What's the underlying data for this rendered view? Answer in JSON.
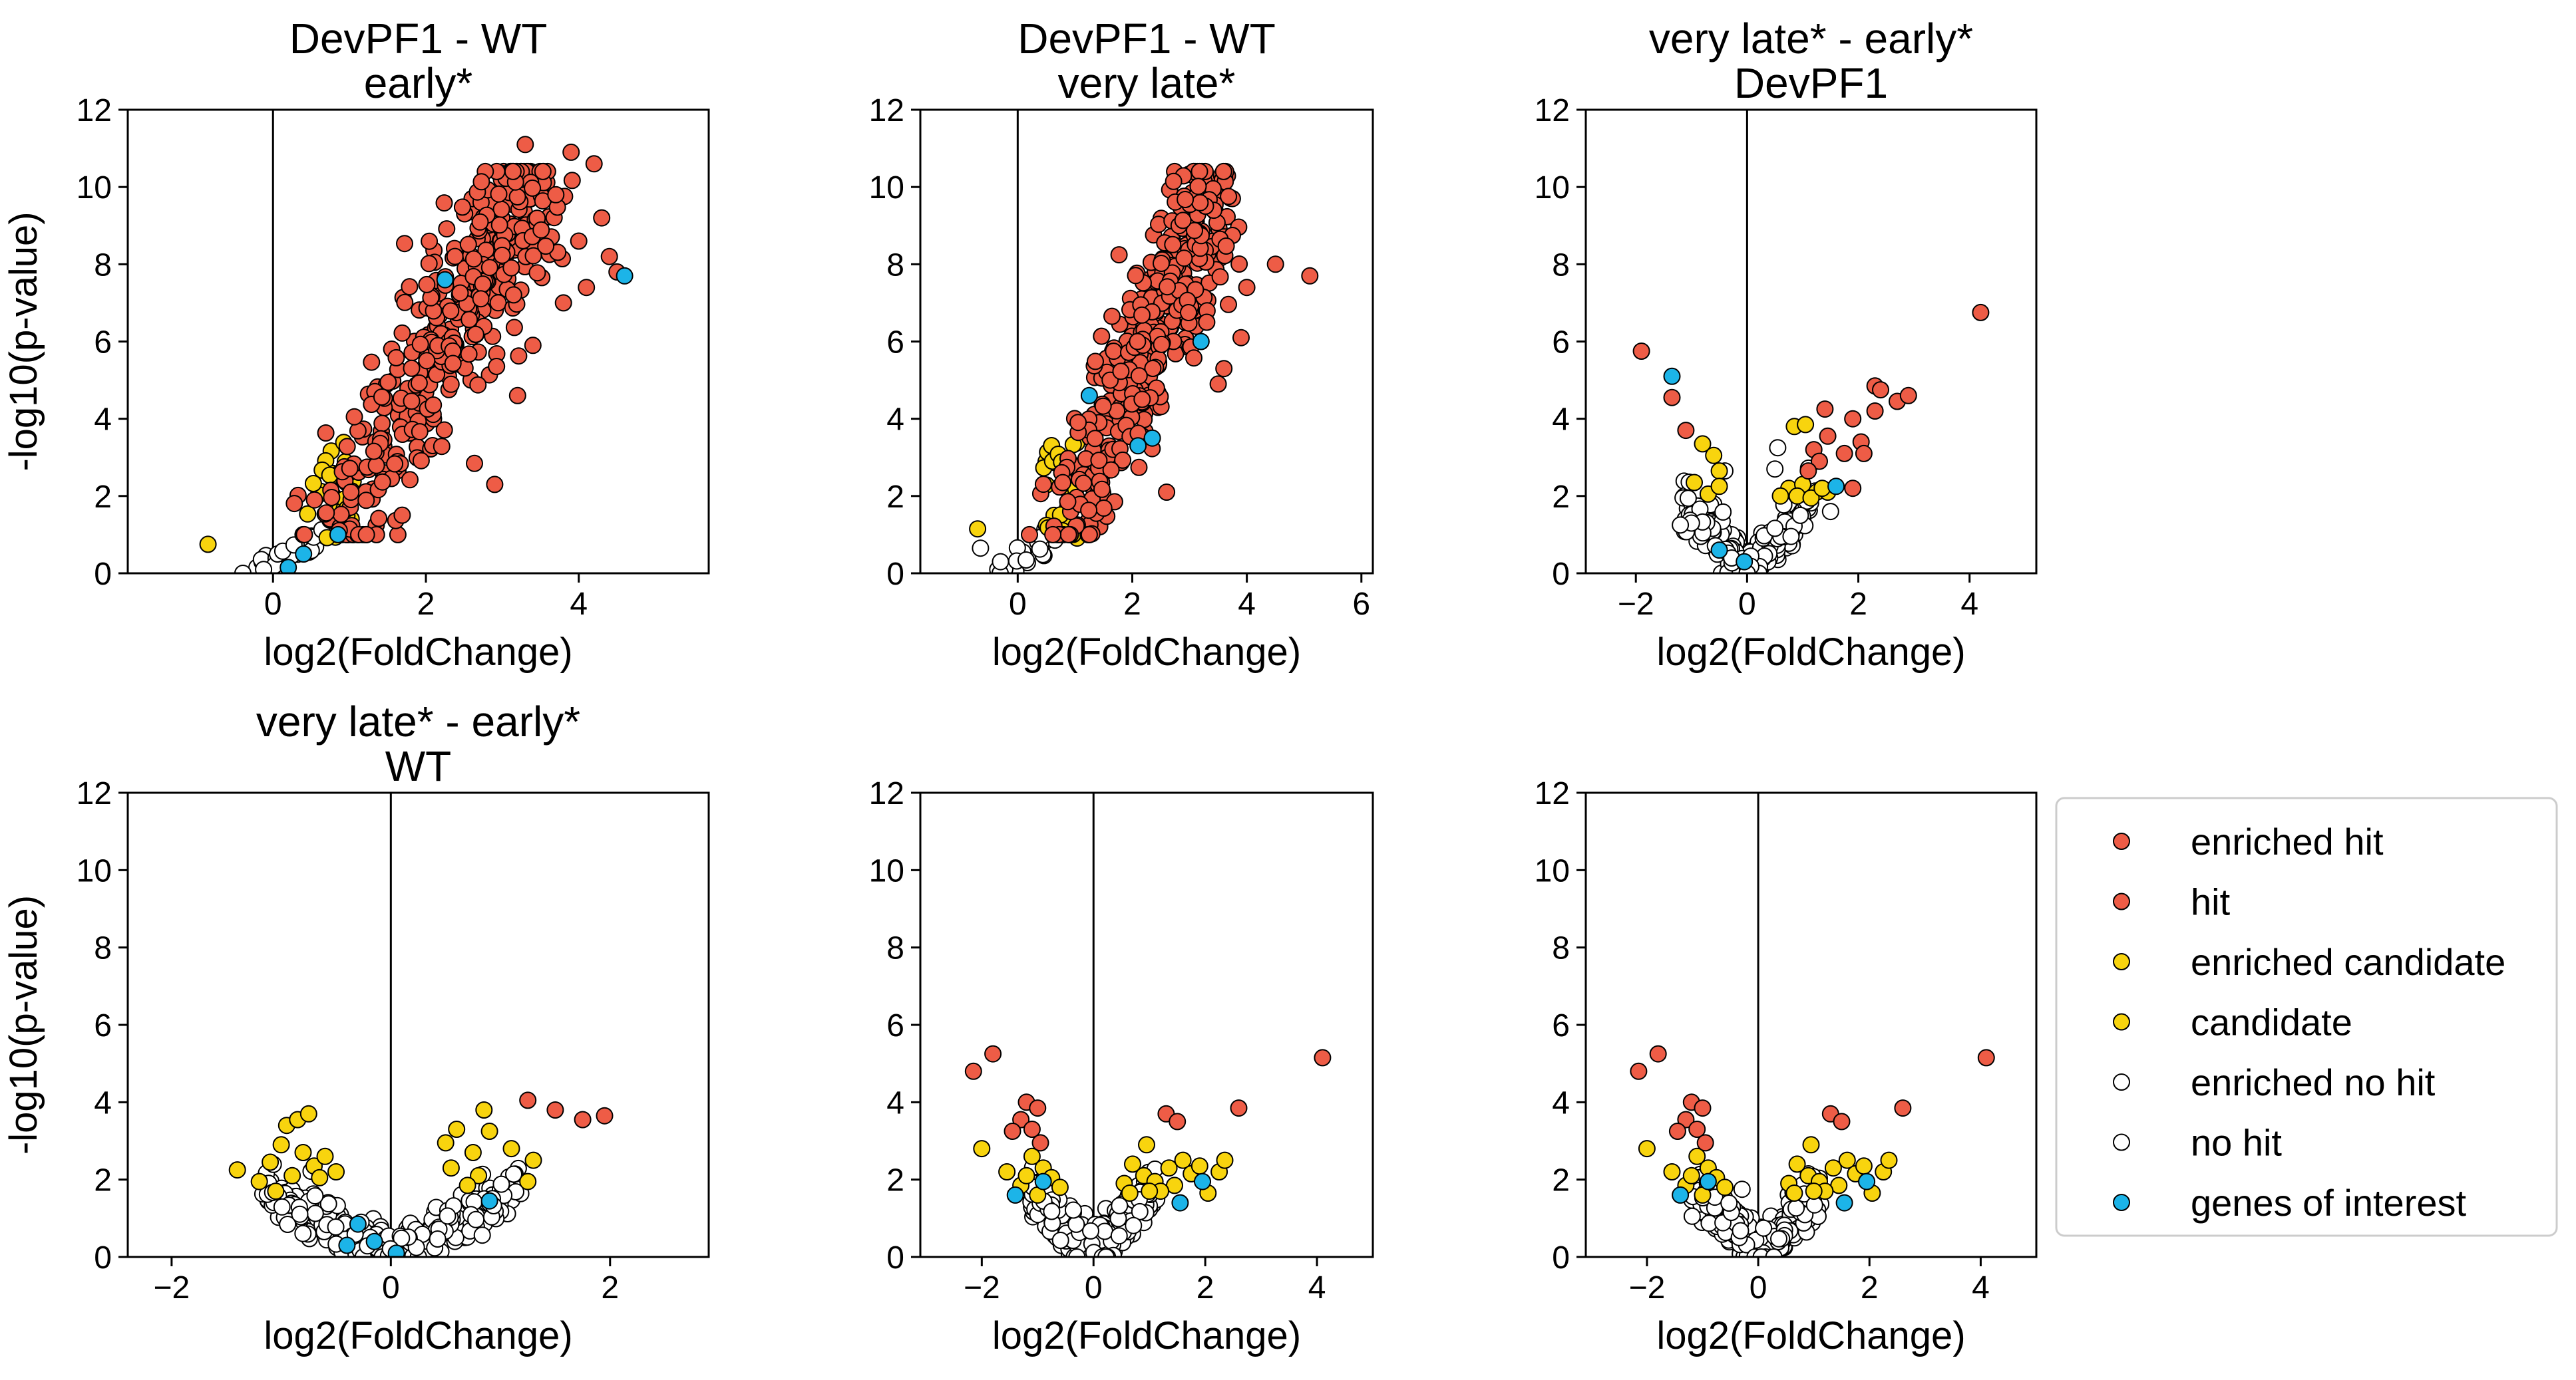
{
  "colors": {
    "hit": "#ee5c46",
    "candidate": "#f8d40e",
    "no_hit": "#ffffff",
    "interest": "#1cb4e8",
    "edge": "#000000"
  },
  "legend": [
    {
      "label": "enriched hit",
      "color": "#ee5c46"
    },
    {
      "label": "hit",
      "color": "#ee5c46"
    },
    {
      "label": "enriched candidate",
      "color": "#f8d40e"
    },
    {
      "label": "candidate",
      "color": "#f8d40e"
    },
    {
      "label": "enriched no hit",
      "color": "#ffffff"
    },
    {
      "label": "no hit",
      "color": "#ffffff"
    },
    {
      "label": "genes of interest",
      "color": "#1cb4e8"
    }
  ],
  "chart_data": [
    {
      "type": "scatter",
      "title": [
        "DevPF1 - WT",
        "early*"
      ],
      "xlabel": "log2(FoldChange)",
      "ylabel": "-log10(p-value)",
      "xlim": [
        -1.9,
        5.7
      ],
      "ylim": [
        0,
        12
      ],
      "xticks": [
        0,
        2,
        4
      ],
      "yticks": [
        0,
        2,
        4,
        6,
        8,
        10,
        12
      ],
      "vline": 0,
      "cloud": {
        "kind": "fan",
        "hit_n": 420,
        "cand_n": 30,
        "nohit_n": 25
      },
      "points": {
        "hit": [
          [
            3.9,
            10.9
          ],
          [
            3.3,
            11.1
          ],
          [
            4.2,
            10.6
          ],
          [
            3.7,
            9.8
          ],
          [
            4.3,
            9.2
          ],
          [
            4.0,
            8.6
          ],
          [
            4.4,
            8.2
          ],
          [
            3.8,
            7.0
          ],
          [
            3.4,
            5.9
          ],
          [
            3.2,
            4.6
          ],
          [
            2.9,
            2.3
          ],
          [
            4.5,
            7.8
          ],
          [
            4.1,
            7.4
          ]
        ],
        "candidate": [
          [
            -0.85,
            0.75
          ]
        ],
        "nohit": [],
        "interest": [
          [
            4.6,
            7.7
          ],
          [
            2.25,
            7.6
          ],
          [
            0.85,
            1.0
          ],
          [
            0.2,
            0.15
          ],
          [
            0.4,
            0.5
          ]
        ]
      }
    },
    {
      "type": "scatter",
      "title": [
        "DevPF1 - WT",
        "very late*"
      ],
      "xlabel": "log2(FoldChange)",
      "ylabel": "",
      "xlim": [
        -1.7,
        6.2
      ],
      "ylim": [
        0,
        12
      ],
      "xticks": [
        0,
        2,
        4,
        6
      ],
      "yticks": [
        0,
        2,
        4,
        6,
        8,
        10,
        12
      ],
      "vline": 0,
      "cloud": {
        "kind": "fan",
        "hit_n": 420,
        "cand_n": 30,
        "nohit_n": 25
      },
      "points": {
        "hit": [
          [
            5.1,
            7.7
          ],
          [
            4.5,
            8.0
          ],
          [
            4.0,
            7.4
          ],
          [
            3.9,
            6.1
          ],
          [
            3.5,
            4.9
          ],
          [
            2.6,
            2.1
          ],
          [
            3.6,
            5.3
          ],
          [
            3.3,
            6.5
          ]
        ],
        "candidate": [
          [
            -0.7,
            1.15
          ]
        ],
        "nohit": [
          [
            -0.65,
            0.65
          ],
          [
            -0.3,
            0.3
          ]
        ],
        "interest": [
          [
            3.2,
            6.0
          ],
          [
            2.35,
            3.5
          ],
          [
            1.25,
            4.6
          ],
          [
            2.1,
            3.3
          ]
        ]
      }
    },
    {
      "type": "scatter",
      "title": [
        "very late* - early*",
        "DevPF1"
      ],
      "xlabel": "log2(FoldChange)",
      "ylabel": "",
      "xlim": [
        -2.9,
        5.2
      ],
      "ylim": [
        0,
        12
      ],
      "xticks": [
        -2,
        0,
        2,
        4
      ],
      "yticks": [
        0,
        2,
        4,
        6,
        8,
        10,
        12
      ],
      "vline": 0,
      "cloud": {
        "kind": "volcano",
        "nohit_n": 260
      },
      "points": {
        "hit": [
          [
            4.2,
            6.75
          ],
          [
            -1.9,
            5.75
          ],
          [
            -1.35,
            4.55
          ],
          [
            -1.1,
            3.7
          ],
          [
            1.9,
            4.0
          ],
          [
            2.3,
            4.85
          ],
          [
            2.4,
            4.75
          ],
          [
            2.7,
            4.45
          ],
          [
            2.9,
            4.6
          ],
          [
            1.4,
            4.25
          ],
          [
            1.45,
            3.55
          ],
          [
            1.2,
            3.2
          ],
          [
            1.75,
            3.1
          ],
          [
            1.3,
            2.9
          ],
          [
            2.05,
            3.4
          ],
          [
            2.3,
            4.2
          ],
          [
            1.1,
            2.65
          ],
          [
            1.9,
            2.2
          ],
          [
            2.1,
            3.1
          ]
        ],
        "candidate": [
          [
            -0.8,
            3.35
          ],
          [
            -0.6,
            3.05
          ],
          [
            -0.5,
            2.65
          ],
          [
            -0.95,
            2.35
          ],
          [
            -0.7,
            2.05
          ],
          [
            -0.5,
            2.25
          ],
          [
            0.85,
            3.8
          ],
          [
            1.05,
            3.85
          ],
          [
            0.75,
            2.2
          ],
          [
            1.0,
            2.3
          ],
          [
            1.25,
            2.1
          ],
          [
            1.45,
            2.1
          ],
          [
            0.9,
            2.0
          ],
          [
            0.6,
            2.0
          ],
          [
            1.15,
            1.95
          ],
          [
            1.35,
            2.2
          ]
        ],
        "nohit": [
          [
            0.55,
            3.25
          ],
          [
            0.5,
            2.7
          ],
          [
            -0.4,
            2.65
          ],
          [
            1.5,
            1.6
          ],
          [
            -1.0,
            1.3
          ],
          [
            -1.2,
            1.25
          ]
        ],
        "interest": [
          [
            -1.35,
            5.1
          ],
          [
            1.6,
            2.25
          ],
          [
            -0.5,
            0.6
          ],
          [
            -0.05,
            0.3
          ]
        ]
      }
    },
    {
      "type": "scatter",
      "title": [
        "very late* - early*",
        "WT"
      ],
      "xlabel": "log2(FoldChange)",
      "ylabel": "-log10(p-value)",
      "xlim": [
        -2.4,
        2.9
      ],
      "ylim": [
        0,
        12
      ],
      "xticks": [
        -2,
        0,
        2
      ],
      "yticks": [
        0,
        2,
        4,
        6,
        8,
        10,
        12
      ],
      "vline": 0,
      "cloud": {
        "kind": "volcano",
        "nohit_n": 380
      },
      "points": {
        "hit": [
          [
            1.25,
            4.05
          ],
          [
            1.5,
            3.8
          ],
          [
            1.75,
            3.55
          ],
          [
            1.95,
            3.65
          ]
        ],
        "candidate": [
          [
            -1.4,
            2.25
          ],
          [
            -1.2,
            1.95
          ],
          [
            -1.1,
            2.45
          ],
          [
            -1.0,
            2.9
          ],
          [
            -0.95,
            3.4
          ],
          [
            -0.85,
            3.55
          ],
          [
            -0.75,
            3.7
          ],
          [
            -0.8,
            2.7
          ],
          [
            -0.7,
            2.35
          ],
          [
            -0.9,
            2.1
          ],
          [
            -1.05,
            1.7
          ],
          [
            -0.65,
            2.05
          ],
          [
            -0.6,
            2.6
          ],
          [
            0.85,
            3.8
          ],
          [
            0.6,
            3.3
          ],
          [
            0.9,
            3.25
          ],
          [
            0.5,
            2.95
          ],
          [
            0.75,
            2.7
          ],
          [
            1.1,
            2.8
          ],
          [
            1.3,
            2.5
          ],
          [
            0.55,
            2.3
          ],
          [
            0.8,
            2.1
          ],
          [
            1.25,
            1.95
          ],
          [
            0.7,
            1.85
          ],
          [
            -0.5,
            2.2
          ]
        ],
        "nohit": [],
        "interest": [
          [
            -0.3,
            0.85
          ],
          [
            0.05,
            0.1
          ],
          [
            -0.15,
            0.4
          ],
          [
            -0.4,
            0.3
          ],
          [
            0.9,
            1.45
          ]
        ]
      }
    },
    {
      "type": "scatter",
      "title": [
        "",
        ""
      ],
      "xlabel": "log2(FoldChange)",
      "ylabel": "",
      "xlim": [
        -3.1,
        5.0
      ],
      "ylim": [
        0,
        12
      ],
      "xticks": [
        -2,
        0,
        2,
        4
      ],
      "yticks": [
        0,
        2,
        4,
        6,
        8,
        10,
        12
      ],
      "vline": 0,
      "cloud": {
        "kind": "volcano",
        "nohit_n": 380
      },
      "points": {
        "hit": [
          [
            -2.15,
            4.8
          ],
          [
            -1.8,
            5.25
          ],
          [
            -1.3,
            3.55
          ],
          [
            -1.2,
            4.0
          ],
          [
            -1.1,
            3.3
          ],
          [
            -1.0,
            3.85
          ],
          [
            -1.45,
            3.25
          ],
          [
            -0.95,
            2.95
          ],
          [
            1.3,
            3.7
          ],
          [
            1.5,
            3.5
          ],
          [
            2.6,
            3.85
          ],
          [
            4.1,
            5.15
          ]
        ],
        "candidate": [
          [
            -2.0,
            2.8
          ],
          [
            -1.55,
            2.2
          ],
          [
            -1.3,
            1.85
          ],
          [
            -1.1,
            2.6
          ],
          [
            -0.9,
            2.3
          ],
          [
            -0.75,
            2.05
          ],
          [
            -0.6,
            1.8
          ],
          [
            -1.2,
            2.1
          ],
          [
            -1.0,
            1.6
          ],
          [
            0.55,
            1.9
          ],
          [
            0.7,
            2.4
          ],
          [
            0.9,
            2.1
          ],
          [
            0.95,
            2.9
          ],
          [
            1.1,
            1.95
          ],
          [
            1.35,
            2.3
          ],
          [
            1.45,
            1.85
          ],
          [
            1.6,
            2.5
          ],
          [
            1.75,
            2.15
          ],
          [
            1.9,
            2.35
          ],
          [
            2.05,
            1.65
          ],
          [
            2.25,
            2.2
          ],
          [
            2.35,
            2.5
          ],
          [
            1.2,
            1.7
          ],
          [
            0.65,
            1.65
          ],
          [
            1.0,
            1.7
          ]
        ],
        "nohit": [],
        "interest": [
          [
            -1.4,
            1.6
          ],
          [
            1.55,
            1.4
          ],
          [
            1.95,
            1.95
          ],
          [
            -0.9,
            1.95
          ]
        ]
      }
    },
    {
      "type": "scatter",
      "title": [
        "",
        ""
      ],
      "xlabel": "log2(FoldChange)",
      "ylabel": "",
      "xlim": [
        -3.1,
        5.0
      ],
      "ylim": [
        0,
        12
      ],
      "xticks": [
        -2,
        0,
        2,
        4
      ],
      "yticks": [
        0,
        2,
        4,
        6,
        8,
        10,
        12
      ],
      "vline": 0,
      "cloud": {
        "kind": "volcano",
        "nohit_n": 380
      },
      "points": {
        "hit": [
          [
            -2.15,
            4.8
          ],
          [
            -1.8,
            5.25
          ],
          [
            -1.3,
            3.55
          ],
          [
            -1.2,
            4.0
          ],
          [
            -1.1,
            3.3
          ],
          [
            -1.0,
            3.85
          ],
          [
            -1.45,
            3.25
          ],
          [
            -0.95,
            2.95
          ],
          [
            1.3,
            3.7
          ],
          [
            1.5,
            3.5
          ],
          [
            2.6,
            3.85
          ],
          [
            4.1,
            5.15
          ]
        ],
        "candidate": [
          [
            -2.0,
            2.8
          ],
          [
            -1.55,
            2.2
          ],
          [
            -1.3,
            1.85
          ],
          [
            -1.1,
            2.6
          ],
          [
            -0.9,
            2.3
          ],
          [
            -0.75,
            2.05
          ],
          [
            -0.6,
            1.8
          ],
          [
            -1.2,
            2.1
          ],
          [
            -1.0,
            1.6
          ],
          [
            0.55,
            1.9
          ],
          [
            0.7,
            2.4
          ],
          [
            0.9,
            2.1
          ],
          [
            0.95,
            2.9
          ],
          [
            1.1,
            1.95
          ],
          [
            1.35,
            2.3
          ],
          [
            1.45,
            1.85
          ],
          [
            1.6,
            2.5
          ],
          [
            1.75,
            2.15
          ],
          [
            1.9,
            2.35
          ],
          [
            2.05,
            1.65
          ],
          [
            2.25,
            2.2
          ],
          [
            2.35,
            2.5
          ],
          [
            1.2,
            1.7
          ],
          [
            0.65,
            1.65
          ],
          [
            1.0,
            1.7
          ]
        ],
        "nohit": [],
        "interest": [
          [
            -1.4,
            1.6
          ],
          [
            1.55,
            1.4
          ],
          [
            1.95,
            1.95
          ],
          [
            -0.9,
            1.95
          ]
        ]
      }
    }
  ]
}
